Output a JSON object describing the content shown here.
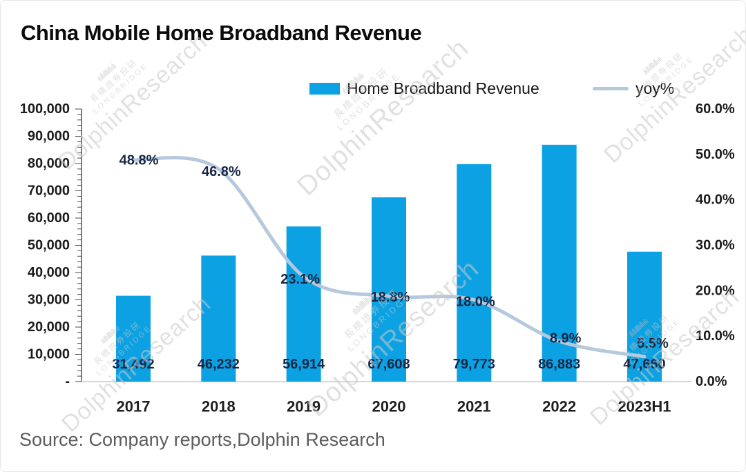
{
  "title": "China Mobile Home Broadband Revenue",
  "source": "Source: Company reports,Dolphin Research",
  "legend": {
    "bar_label": "Home Broadband Revenue",
    "line_label": "yoy%"
  },
  "watermark": {
    "logo_glyph": "ılıllıllllıllıılı",
    "cn_line": "長橋證券投研",
    "sub_line": "LONGBRIDGE",
    "brand": "DolphinResearch"
  },
  "colors": {
    "bar": "#0ba1e2",
    "line": "#b5c8de",
    "value_label": "#182743",
    "axis_line": "#4a4a4a",
    "x_axis_line": "#c9c9c9",
    "tick_label": "#1c1c1c",
    "source_text": "#5c5c5c"
  },
  "chart_data": {
    "type": "bar",
    "title": "China Mobile Home Broadband Revenue",
    "categories": [
      "2017",
      "2018",
      "2019",
      "2020",
      "2021",
      "2022",
      "2023H1"
    ],
    "series": [
      {
        "name": "Home Broadband Revenue",
        "type": "bar",
        "axis": "left",
        "values": [
          31492,
          46232,
          56914,
          67608,
          79773,
          86883,
          47660
        ],
        "value_labels": [
          "31,492",
          "46,232",
          "56,914",
          "67,608",
          "79,773",
          "86,883",
          "47,660"
        ]
      },
      {
        "name": "yoy%",
        "type": "line",
        "axis": "right",
        "values": [
          48.8,
          46.8,
          23.1,
          18.8,
          18.0,
          8.9,
          5.5
        ],
        "value_labels": [
          "48.8%",
          "46.8%",
          "23.1%",
          "18.8%",
          "18.0%",
          "8.9%",
          "5.5%"
        ]
      }
    ],
    "left_axis": {
      "min": 0,
      "max": 100000,
      "step": 10000,
      "tick_labels": [
        "100,000",
        "90,000",
        "80,000",
        "70,000",
        "60,000",
        "50,000",
        "40,000",
        "30,000",
        "20,000",
        "10,000",
        "-"
      ]
    },
    "right_axis": {
      "min": 0,
      "max": 60,
      "step": 10,
      "tick_labels": [
        "60.0%",
        "50.0%",
        "40.0%",
        "30.0%",
        "20.0%",
        "10.0%",
        "0.0%"
      ]
    },
    "grid": false,
    "legend_position": "top"
  }
}
